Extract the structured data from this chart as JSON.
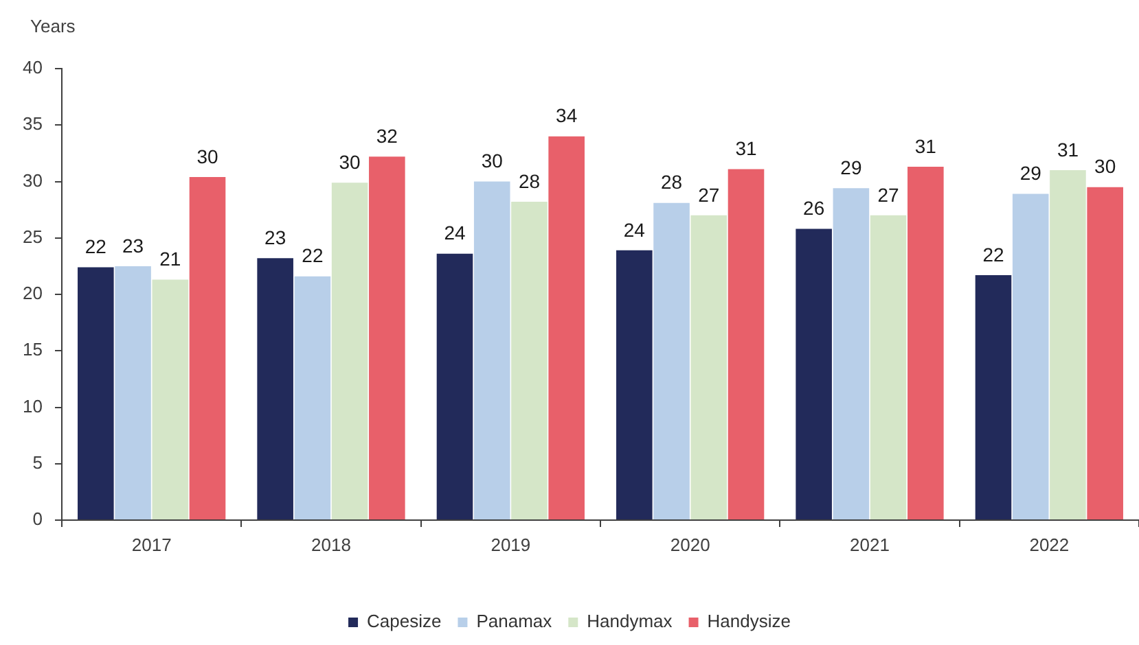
{
  "chart_data": {
    "type": "bar",
    "ylabel": "Years",
    "categories": [
      "2017",
      "2018",
      "2019",
      "2020",
      "2021",
      "2022"
    ],
    "series": [
      {
        "name": "Capesize",
        "color": "#222a5a",
        "values": [
          22.4,
          23.2,
          23.6,
          23.9,
          25.8,
          21.7
        ],
        "value_labels": [
          "22",
          "23",
          "24",
          "24",
          "26",
          "22"
        ]
      },
      {
        "name": "Panamax",
        "color": "#b8cfe9",
        "values": [
          22.5,
          21.6,
          30.0,
          28.1,
          29.4,
          28.9
        ],
        "value_labels": [
          "23",
          "22",
          "30",
          "28",
          "29",
          "29"
        ]
      },
      {
        "name": "Handymax",
        "color": "#d5e6c8",
        "values": [
          21.3,
          29.9,
          28.2,
          27.0,
          27.0,
          31.0
        ],
        "value_labels": [
          "21",
          "30",
          "28",
          "27",
          "27",
          "31"
        ]
      },
      {
        "name": "Handysize",
        "color": "#e8606a",
        "values": [
          30.4,
          32.2,
          34.0,
          31.1,
          31.3,
          29.5
        ],
        "value_labels": [
          "30",
          "32",
          "34",
          "31",
          "31",
          "30"
        ]
      }
    ],
    "ylim": [
      0,
      40
    ],
    "yticks": [
      0,
      5,
      10,
      15,
      20,
      25,
      30,
      35,
      40
    ],
    "legend": "bottom"
  }
}
